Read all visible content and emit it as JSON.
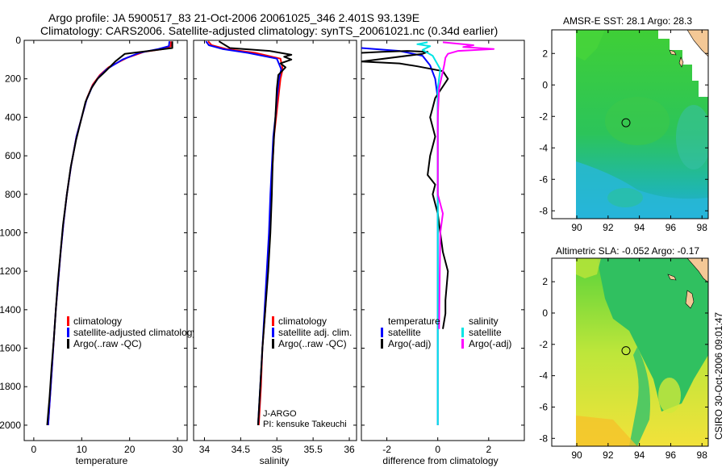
{
  "header": {
    "line1": "Argo profile: JA 5900517_83 21-Oct-2006 20061025_346 2.401S 93.139E",
    "line2": "Climatology: CARS2006. Satellite-adjusted climatology: synTS_20061021.nc (0.34d earlier)"
  },
  "side_label": "CSIRO 30-Oct-2006 09:01:47",
  "chart_data": [
    {
      "id": "temp",
      "type": "line",
      "xlabel": "temperature",
      "ylabel": "",
      "xlim": [
        -2,
        32
      ],
      "ylim": [
        0,
        2080
      ],
      "y_reversed": true,
      "xticks": [
        "0",
        "10",
        "20",
        "30"
      ],
      "xtick_values": [
        0,
        10,
        20,
        30
      ],
      "yticks": [
        "0",
        "200",
        "400",
        "600",
        "800",
        "1000",
        "1200",
        "1400",
        "1600",
        "1800",
        "2000"
      ],
      "ytick_values": [
        0,
        200,
        400,
        600,
        800,
        1000,
        1200,
        1400,
        1600,
        1800,
        2000
      ],
      "legend": [
        "climatology",
        "satellite-adjusted climatology",
        "Argo(..raw -QC)"
      ],
      "series": [
        {
          "name": "climatology",
          "color": "#ff0000",
          "points": [
            [
              28.6,
              5
            ],
            [
              28.6,
              30
            ],
            [
              27,
              45
            ],
            [
              23,
              60
            ],
            [
              19.5,
              90
            ],
            [
              15.6,
              140
            ],
            [
              13.8,
              180
            ],
            [
              12.3,
              230
            ],
            [
              11.1,
              300
            ],
            [
              10,
              400
            ],
            [
              8.9,
              500
            ],
            [
              7.8,
              650
            ],
            [
              6.9,
              800
            ],
            [
              6.2,
              950
            ],
            [
              5.6,
              1100
            ],
            [
              5.1,
              1250
            ],
            [
              4.6,
              1400
            ],
            [
              4.2,
              1550
            ],
            [
              3.8,
              1700
            ],
            [
              3.4,
              1850
            ],
            [
              3,
              2000
            ]
          ]
        },
        {
          "name": "satellite-adjusted climatology",
          "color": "#0000ff",
          "points": [
            [
              28.3,
              5
            ],
            [
              28.2,
              30
            ],
            [
              26,
              45
            ],
            [
              22,
              65
            ],
            [
              18.5,
              100
            ],
            [
              15.2,
              150
            ],
            [
              13.6,
              190
            ],
            [
              12.2,
              240
            ],
            [
              11,
              310
            ],
            [
              10,
              400
            ],
            [
              8.9,
              500
            ],
            [
              7.8,
              650
            ],
            [
              6.9,
              800
            ],
            [
              6.2,
              950
            ],
            [
              5.6,
              1100
            ],
            [
              5.1,
              1250
            ],
            [
              4.6,
              1400
            ],
            [
              4.2,
              1550
            ],
            [
              3.8,
              1700
            ],
            [
              3.4,
              1850
            ],
            [
              3,
              2000
            ]
          ]
        },
        {
          "name": "Argo(..raw -QC)",
          "color": "#000000",
          "points": [
            [
              28.9,
              5
            ],
            [
              28.9,
              40
            ],
            [
              24,
              55
            ],
            [
              19,
              70
            ],
            [
              17,
              110
            ],
            [
              15,
              160
            ],
            [
              13.3,
              200
            ],
            [
              12,
              250
            ],
            [
              10.8,
              320
            ],
            [
              9.8,
              420
            ],
            [
              8.8,
              520
            ],
            [
              7.7,
              660
            ],
            [
              6.9,
              800
            ],
            [
              6.1,
              960
            ],
            [
              5.5,
              1120
            ],
            [
              5,
              1260
            ],
            [
              4.6,
              1400
            ],
            [
              4.2,
              1550
            ],
            [
              3.7,
              1700
            ],
            [
              3.3,
              1850
            ],
            [
              2.8,
              2000
            ]
          ]
        }
      ]
    },
    {
      "id": "sal",
      "type": "line",
      "xlabel": "salinity",
      "ylabel": "",
      "xlim": [
        33.85,
        36.1
      ],
      "ylim": [
        0,
        2080
      ],
      "y_reversed": true,
      "xticks": [
        "34",
        "34.5",
        "35",
        "35.5",
        "36"
      ],
      "xtick_values": [
        34,
        34.5,
        35,
        35.5,
        36
      ],
      "legend": [
        "climatology",
        "satellite adj. clim.",
        "Argo(..raw -QC)"
      ],
      "annotation": [
        "J-ARGO",
        "PI: kensuke Takeuchi"
      ],
      "series": [
        {
          "name": "climatology",
          "color": "#ff0000",
          "points": [
            [
              34.05,
              5
            ],
            [
              34.1,
              25
            ],
            [
              34.3,
              45
            ],
            [
              34.7,
              65
            ],
            [
              35.05,
              95
            ],
            [
              35.08,
              150
            ],
            [
              35.05,
              200
            ],
            [
              35.02,
              300
            ],
            [
              34.99,
              400
            ],
            [
              34.96,
              500
            ],
            [
              34.94,
              650
            ],
            [
              34.92,
              800
            ],
            [
              34.9,
              1000
            ],
            [
              34.87,
              1200
            ],
            [
              34.84,
              1400
            ],
            [
              34.8,
              1600
            ],
            [
              34.78,
              1800
            ],
            [
              34.75,
              2000
            ]
          ]
        },
        {
          "name": "satellite adj. clim.",
          "color": "#0000ff",
          "points": [
            [
              34.02,
              5
            ],
            [
              34.06,
              25
            ],
            [
              34.25,
              45
            ],
            [
              34.6,
              65
            ],
            [
              35,
              95
            ],
            [
              35.06,
              150
            ],
            [
              35.03,
              200
            ],
            [
              35,
              300
            ],
            [
              34.98,
              400
            ],
            [
              34.95,
              500
            ],
            [
              34.93,
              650
            ],
            [
              34.91,
              800
            ],
            [
              34.89,
              1000
            ],
            [
              34.86,
              1200
            ],
            [
              34.83,
              1400
            ],
            [
              34.8,
              1600
            ],
            [
              34.77,
              1800
            ],
            [
              34.74,
              2000
            ]
          ]
        },
        {
          "name": "Argo(..raw -QC)",
          "color": "#000000",
          "points": [
            [
              34.2,
              5
            ],
            [
              34.35,
              40
            ],
            [
              34.9,
              55
            ],
            [
              35.2,
              75
            ],
            [
              35.1,
              85
            ],
            [
              35.2,
              100
            ],
            [
              35.05,
              120
            ],
            [
              35.12,
              140
            ],
            [
              35.02,
              180
            ],
            [
              35,
              250
            ],
            [
              34.98,
              400
            ],
            [
              34.96,
              500
            ],
            [
              34.94,
              650
            ],
            [
              34.93,
              800
            ],
            [
              34.91,
              1000
            ],
            [
              34.88,
              1200
            ],
            [
              34.84,
              1400
            ],
            [
              34.8,
              1600
            ],
            [
              34.77,
              1800
            ],
            [
              34.74,
              2000
            ]
          ]
        }
      ]
    },
    {
      "id": "diff",
      "type": "line",
      "xlabel": "difference from climatology",
      "ylabel": "",
      "xlim": [
        -3,
        3.4
      ],
      "ylim": [
        0,
        2080
      ],
      "y_reversed": true,
      "xticks": [
        "-2",
        "0",
        "2"
      ],
      "xtick_values": [
        -2,
        0,
        2
      ],
      "legend_left": [
        "temperature",
        "satellite",
        "Argo(-adj)"
      ],
      "legend_right": [
        "salinity",
        "satellite",
        "Argo(-adj)"
      ],
      "series": [
        {
          "name": "temperature satellite",
          "color": "#0000ff",
          "points": [
            [
              -3,
              40
            ],
            [
              -1.5,
              55
            ],
            [
              -0.6,
              80
            ],
            [
              -0.3,
              130
            ],
            [
              -0.1,
              200
            ],
            [
              0,
              300
            ],
            [
              0,
              2000
            ]
          ]
        },
        {
          "name": "temperature Argo(-adj)",
          "color": "#000000",
          "points": [
            [
              -3,
              65
            ],
            [
              -2.2,
              60
            ],
            [
              -1.2,
              55
            ],
            [
              -0.4,
              60
            ],
            [
              -0.6,
              70
            ],
            [
              -3,
              110
            ],
            [
              -1.5,
              120
            ],
            [
              -0.8,
              135
            ],
            [
              0.2,
              160
            ],
            [
              0.4,
              200
            ],
            [
              0.1,
              260
            ],
            [
              -0.1,
              300
            ],
            [
              -0.2,
              350
            ],
            [
              -0.3,
              400
            ],
            [
              -0.1,
              500
            ],
            [
              -0.3,
              600
            ],
            [
              -0.4,
              700
            ],
            [
              -0.1,
              750
            ],
            [
              -0.2,
              800
            ],
            [
              0,
              900
            ],
            [
              0.1,
              1000
            ],
            [
              0.2,
              1100
            ],
            [
              0.4,
              1200
            ],
            [
              0.3,
              1350
            ],
            [
              0.3,
              1420
            ],
            [
              0.2,
              1500
            ]
          ]
        },
        {
          "name": "salinity satellite",
          "color": "#00e5e5",
          "points": [
            [
              -0.4,
              10
            ],
            [
              -0.8,
              20
            ],
            [
              -0.3,
              30
            ],
            [
              -0.6,
              50
            ],
            [
              -0.2,
              80
            ],
            [
              0.1,
              150
            ],
            [
              0,
              250
            ],
            [
              0,
              2000
            ]
          ]
        },
        {
          "name": "salinity Argo(-adj)",
          "color": "#ff00ff",
          "points": [
            [
              0.2,
              10
            ],
            [
              1.4,
              25
            ],
            [
              1,
              35
            ],
            [
              2.2,
              45
            ],
            [
              0.8,
              55
            ],
            [
              0.4,
              70
            ],
            [
              0.3,
              90
            ],
            [
              0.25,
              130
            ],
            [
              0.05,
              250
            ],
            [
              0,
              400
            ],
            [
              0,
              800
            ],
            [
              0.2,
              900
            ],
            [
              0.1,
              1000
            ],
            [
              0.05,
              1500
            ]
          ]
        }
      ]
    },
    {
      "id": "map_sst",
      "type": "heatmap",
      "title": "AMSR-E SST: 28.1  Argo: 28.3",
      "xticks": [
        "90",
        "92",
        "94",
        "96",
        "98"
      ],
      "xtick_values": [
        90,
        92,
        94,
        96,
        98
      ],
      "yticks": [
        "2",
        "0",
        "-2",
        "-4",
        "-6",
        "-8"
      ],
      "ytick_values": [
        2,
        0,
        -2,
        -4,
        -6,
        -8
      ],
      "xlim": [
        88.4,
        98.4
      ],
      "ylim": [
        -8.5,
        3.5
      ],
      "marker": [
        93.14,
        -2.4
      ]
    },
    {
      "id": "map_sla",
      "type": "heatmap",
      "title": "Altimetric SLA: -0.052  Argo: -0.17",
      "xticks": [
        "90",
        "92",
        "94",
        "96",
        "98"
      ],
      "xtick_values": [
        90,
        92,
        94,
        96,
        98
      ],
      "yticks": [
        "2",
        "0",
        "-2",
        "-4",
        "-6",
        "-8"
      ],
      "ytick_values": [
        2,
        0,
        -2,
        -4,
        -6,
        -8
      ],
      "xlim": [
        88.4,
        98.4
      ],
      "ylim": [
        -8.5,
        3.5
      ],
      "marker": [
        93.14,
        -2.4
      ]
    }
  ]
}
